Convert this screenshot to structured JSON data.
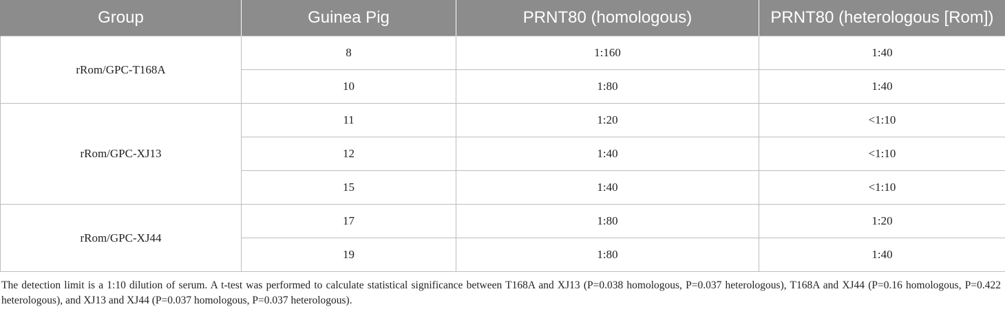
{
  "table": {
    "headers": [
      "Group",
      "Guinea Pig",
      "PRNT80 (homologous)",
      "PRNT80 (heterologous [Rom])"
    ],
    "groups": [
      {
        "name": "rRom/GPC-T168A",
        "rows": [
          {
            "pig": "8",
            "homologous": "1:160",
            "heterologous": "1:40"
          },
          {
            "pig": "10",
            "homologous": "1:80",
            "heterologous": "1:40"
          }
        ]
      },
      {
        "name": "rRom/GPC-XJ13",
        "rows": [
          {
            "pig": "11",
            "homologous": "1:20",
            "heterologous": "<1:10"
          },
          {
            "pig": "12",
            "homologous": "1:40",
            "heterologous": "<1:10"
          },
          {
            "pig": "15",
            "homologous": "1:40",
            "heterologous": "<1:10"
          }
        ]
      },
      {
        "name": "rRom/GPC-XJ44",
        "rows": [
          {
            "pig": "17",
            "homologous": "1:80",
            "heterologous": "1:20"
          },
          {
            "pig": "19",
            "homologous": "1:80",
            "heterologous": "1:40"
          }
        ]
      }
    ]
  },
  "footnote": "The detection limit is a 1:10 dilution of serum. A t-test was performed to calculate statistical significance between T168A and XJ13 (P=0.038 homologous, P=0.037 heterologous), T168A and XJ44 (P=0.16 homologous, P=0.422 heterologous), and XJ13 and XJ44 (P=0.037 homologous, P=0.037 heterologous)."
}
